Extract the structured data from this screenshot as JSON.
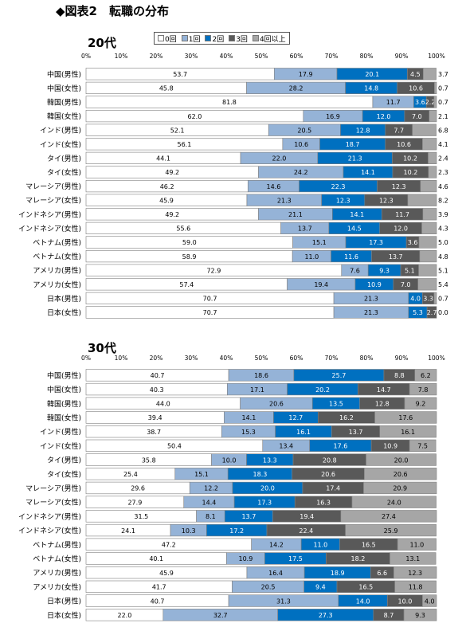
{
  "page_title": "◆図表2　転職の分布",
  "legend": [
    {
      "label": "0回",
      "color": "#ffffff"
    },
    {
      "label": "1回",
      "color": "#95b3d7"
    },
    {
      "label": "2回",
      "color": "#0070c0"
    },
    {
      "label": "3回",
      "color": "#595959"
    },
    {
      "label": "4回以上",
      "color": "#a6a6a6"
    }
  ],
  "chart_data": [
    {
      "type": "bar",
      "orientation": "horizontal",
      "stacked": true,
      "title": "20代",
      "xlim": [
        0,
        100
      ],
      "xticks": [
        "0%",
        "10%",
        "20%",
        "30%",
        "40%",
        "50%",
        "60%",
        "70%",
        "80%",
        "90%",
        "100%"
      ],
      "legend_position": "top",
      "grid": false,
      "categories": [
        "中国(男性)",
        "中国(女性)",
        "韓国(男性)",
        "韓国(女性)",
        "インド(男性)",
        "インド(女性)",
        "タイ(男性)",
        "タイ(女性)",
        "マレーシア(男性)",
        "マレーシア(女性)",
        "インドネシア(男性)",
        "インドネシア(女性)",
        "ベトナム(男性)",
        "ベトナム(女性)",
        "アメリカ(男性)",
        "アメリカ(女性)",
        "日本(男性)",
        "日本(女性)"
      ],
      "series": [
        {
          "name": "0回",
          "values": [
            53.7,
            45.8,
            81.8,
            62.0,
            52.1,
            56.1,
            44.1,
            49.2,
            46.2,
            45.9,
            49.2,
            55.6,
            59.0,
            58.9,
            72.9,
            57.4,
            70.7,
            70.7
          ]
        },
        {
          "name": "1回",
          "values": [
            17.9,
            28.2,
            11.7,
            16.9,
            20.5,
            10.6,
            22.0,
            24.2,
            14.6,
            21.3,
            21.1,
            13.7,
            15.1,
            11.0,
            7.6,
            19.4,
            21.3,
            21.3
          ]
        },
        {
          "name": "2回",
          "values": [
            20.1,
            14.8,
            3.6,
            12.0,
            12.8,
            18.7,
            21.3,
            14.1,
            22.3,
            12.3,
            14.1,
            14.5,
            17.3,
            11.6,
            9.3,
            10.9,
            4.0,
            5.3
          ]
        },
        {
          "name": "3回",
          "values": [
            4.5,
            10.6,
            2.2,
            7.0,
            7.7,
            10.6,
            10.2,
            10.2,
            12.3,
            12.3,
            11.7,
            12.0,
            3.6,
            13.7,
            5.1,
            7.0,
            3.3,
            2.7
          ]
        },
        {
          "name": "4回以上",
          "values": [
            3.7,
            0.7,
            0.7,
            2.1,
            6.8,
            4.1,
            2.4,
            2.3,
            4.6,
            8.2,
            3.9,
            4.3,
            5.0,
            4.8,
            5.1,
            5.4,
            0.7,
            0.0
          ]
        }
      ]
    },
    {
      "type": "bar",
      "orientation": "horizontal",
      "stacked": true,
      "title": "30代",
      "xlim": [
        0,
        100
      ],
      "xticks": [
        "0%",
        "10%",
        "20%",
        "30%",
        "40%",
        "50%",
        "60%",
        "70%",
        "80%",
        "90%",
        "100%"
      ],
      "legend_position": "none",
      "grid": false,
      "categories": [
        "中国(男性)",
        "中国(女性)",
        "韓国(男性)",
        "韓国(女性)",
        "インド(男性)",
        "インド(女性)",
        "タイ(男性)",
        "タイ(女性)",
        "マレーシア(男性)",
        "マレーシア(女性)",
        "インドネシア(男性)",
        "インドネシア(女性)",
        "ベトナム(男性)",
        "ベトナム(女性)",
        "アメリカ(男性)",
        "アメリカ(女性)",
        "日本(男性)",
        "日本(女性)"
      ],
      "series": [
        {
          "name": "0回",
          "values": [
            40.7,
            40.3,
            44.0,
            39.4,
            38.7,
            50.4,
            35.8,
            25.4,
            29.6,
            27.9,
            31.5,
            24.1,
            47.2,
            40.1,
            45.9,
            41.7,
            40.7,
            22.0
          ]
        },
        {
          "name": "1回",
          "values": [
            18.6,
            17.1,
            20.6,
            14.1,
            15.3,
            13.4,
            10.0,
            15.1,
            12.2,
            14.4,
            8.1,
            10.3,
            14.2,
            10.9,
            16.4,
            20.5,
            31.3,
            32.7
          ]
        },
        {
          "name": "2回",
          "values": [
            25.7,
            20.2,
            13.5,
            12.7,
            16.1,
            17.6,
            13.3,
            18.3,
            20.0,
            17.3,
            13.7,
            17.2,
            11.0,
            17.5,
            18.9,
            9.4,
            14.0,
            27.3
          ]
        },
        {
          "name": "3回",
          "values": [
            8.8,
            14.7,
            12.8,
            16.2,
            13.7,
            10.9,
            20.8,
            20.6,
            17.4,
            16.3,
            19.4,
            22.4,
            16.5,
            18.2,
            6.6,
            16.5,
            10.0,
            8.7
          ]
        },
        {
          "name": "4回以上",
          "values": [
            6.2,
            7.8,
            9.2,
            17.6,
            16.1,
            7.5,
            20.0,
            20.6,
            20.9,
            24.0,
            27.4,
            25.9,
            11.0,
            13.1,
            12.3,
            11.8,
            4.0,
            9.3
          ]
        }
      ]
    }
  ]
}
